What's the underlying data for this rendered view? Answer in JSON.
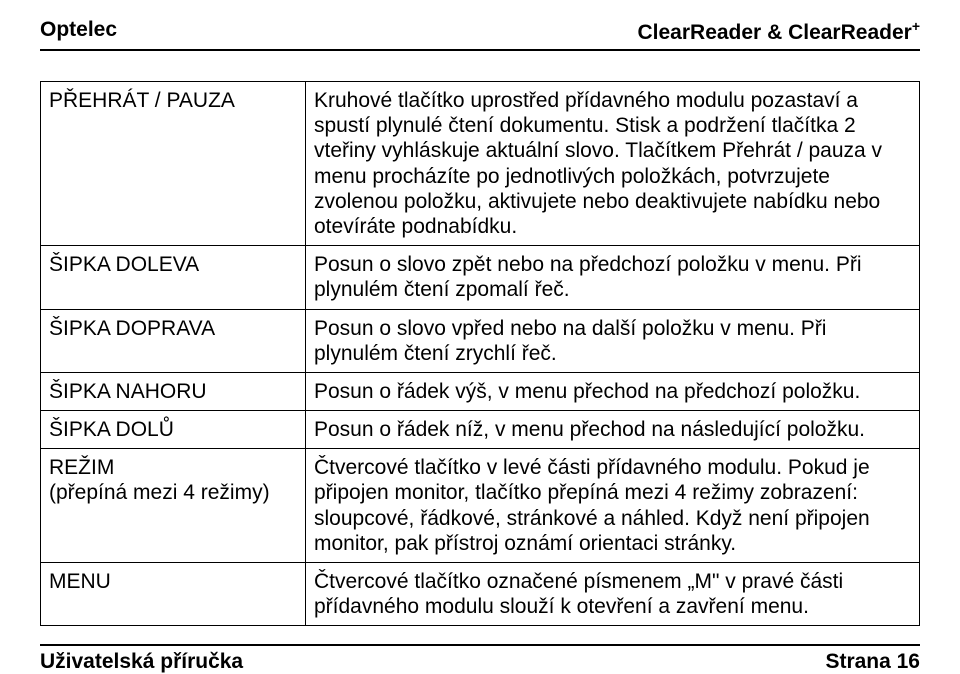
{
  "header": {
    "left": "Optelec",
    "right_base": "ClearReader & ClearReader",
    "right_sup": "+"
  },
  "table": {
    "rows": [
      {
        "term": "PŘEHRÁT / PAUZA",
        "desc": "Kruhové tlačítko uprostřed přídavného modulu pozastaví a spustí plynulé čtení dokumentu. Stisk a podržení tlačítka 2 vteřiny vyhláskuje aktuální slovo. Tlačítkem Přehrát / pauza v menu procházíte po jednotlivých položkách, potvrzujete zvolenou položku, aktivujete nebo deaktivujete nabídku nebo otevíráte podnabídku."
      },
      {
        "term": "ŠIPKA DOLEVA",
        "desc": "Posun o slovo zpět nebo na předchozí položku v menu. Při plynulém čtení zpomalí řeč."
      },
      {
        "term": "ŠIPKA DOPRAVA",
        "desc": "Posun o slovo vpřed nebo na další položku v menu. Při plynulém čtení zrychlí řeč."
      },
      {
        "term": "ŠIPKA NAHORU",
        "desc": "Posun o řádek výš, v menu přechod na předchozí položku."
      },
      {
        "term": "ŠIPKA DOLŮ",
        "desc": "Posun o řádek níž, v menu přechod na následující položku."
      },
      {
        "term": "REŽIM\n(přepíná mezi 4 režimy)",
        "desc": "Čtvercové tlačítko v levé části přídavného modulu. Pokud je připojen monitor, tlačítko přepíná mezi 4 režimy zobrazení: sloupcové, řádkové, stránkové a náhled. Když není připojen monitor, pak přístroj oznámí orientaci stránky."
      },
      {
        "term": "MENU",
        "desc": "Čtvercové tlačítko označené písmenem „M\" v pravé části přídavného modulu slouží k otevření a zavření menu."
      }
    ]
  },
  "footer": {
    "left": "Uživatelská příručka",
    "right": "Strana 16"
  }
}
